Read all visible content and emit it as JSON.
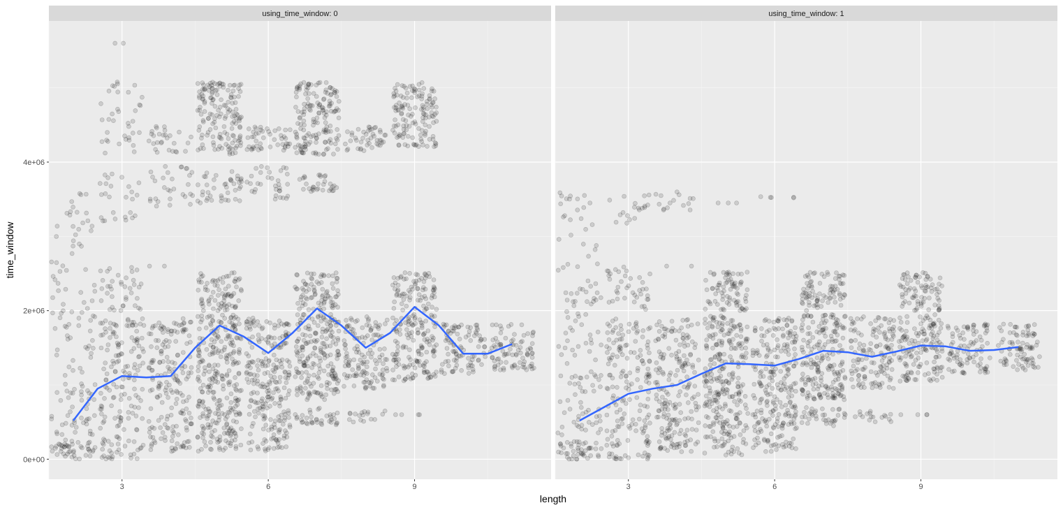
{
  "chart_data": {
    "type": "scatter",
    "xlabel": "length",
    "ylabel": "time_window",
    "xlim": [
      1.5,
      11.8
    ],
    "ylim": [
      -270000,
      5900000
    ],
    "x_ticks": [
      3,
      6,
      9
    ],
    "x_tick_labels": [
      "3",
      "6",
      "9"
    ],
    "y_ticks": [
      0,
      2000000,
      4000000
    ],
    "y_tick_labels": [
      "0e+00",
      "2e+06",
      "4e+06"
    ],
    "grid": true,
    "smooth_color": "#3366FF",
    "point_color": "#000000",
    "panel_background": "#EBEBEB",
    "strip_background": "#D9D9D9",
    "panels": [
      {
        "strip_label": "using_time_window: 0",
        "smooth": {
          "x": [
            2.0,
            2.5,
            3.0,
            3.5,
            4.0,
            4.5,
            5.0,
            5.5,
            6.0,
            6.5,
            7.0,
            7.5,
            8.0,
            8.5,
            9.0,
            9.5,
            10.0,
            10.5,
            11.0
          ],
          "y": [
            520000,
            950000,
            1120000,
            1100000,
            1120000,
            1500000,
            1800000,
            1650000,
            1430000,
            1700000,
            2030000,
            1800000,
            1500000,
            1700000,
            2050000,
            1800000,
            1420000,
            1420000,
            1550000
          ]
        },
        "groups": [
          {
            "x": 2,
            "bands": [
              [
                0,
                250000,
                1.0
              ],
              [
                250000,
                1200000,
                0.3
              ],
              [
                1200000,
                2200000,
                0.2
              ],
              [
                2200000,
                3600000,
                0.15
              ]
            ]
          },
          {
            "x": 3,
            "bands": [
              [
                0,
                300000,
                0.6
              ],
              [
                300000,
                1000000,
                0.4
              ],
              [
                1000000,
                1900000,
                0.55
              ],
              [
                2000000,
                2600000,
                0.35
              ],
              [
                3200000,
                3900000,
                0.2
              ],
              [
                4100000,
                5100000,
                0.2
              ],
              [
                5600000,
                5600000,
                0.1
              ]
            ]
          },
          {
            "x": 4,
            "bands": [
              [
                100000,
                1900000,
                0.6
              ],
              [
                2600000,
                2600000,
                0.1
              ],
              [
                3400000,
                3950000,
                0.3
              ],
              [
                4100000,
                4480000,
                0.4
              ]
            ]
          },
          {
            "x": 5,
            "bands": [
              [
                100000,
                1950000,
                0.9
              ],
              [
                2000000,
                2520000,
                0.85
              ],
              [
                3450000,
                3880000,
                0.55
              ],
              [
                4100000,
                5080000,
                0.9
              ]
            ]
          },
          {
            "x": 6,
            "bands": [
              [
                100000,
                1900000,
                0.8
              ],
              [
                3500000,
                3950000,
                0.4
              ],
              [
                4150000,
                4480000,
                0.8
              ]
            ]
          },
          {
            "x": 7,
            "bands": [
              [
                450000,
                700000,
                0.8
              ],
              [
                800000,
                1950000,
                1.0
              ],
              [
                2000000,
                2520000,
                0.9
              ],
              [
                3600000,
                3880000,
                0.6
              ],
              [
                4100000,
                5080000,
                0.95
              ]
            ]
          },
          {
            "x": 8,
            "bands": [
              [
                500000,
                650000,
                0.6
              ],
              [
                950000,
                1920000,
                0.8
              ],
              [
                4150000,
                4480000,
                0.75
              ]
            ]
          },
          {
            "x": 9,
            "bands": [
              [
                600000,
                600000,
                0.5
              ],
              [
                1050000,
                1950000,
                0.9
              ],
              [
                2000000,
                2520000,
                0.85
              ],
              [
                4200000,
                5080000,
                0.9
              ]
            ]
          },
          {
            "x": 10,
            "bands": [
              [
                1150000,
                1820000,
                0.8
              ]
            ]
          },
          {
            "x": 11,
            "bands": [
              [
                1200000,
                1820000,
                0.8
              ]
            ]
          }
        ]
      },
      {
        "strip_label": "using_time_window: 1",
        "smooth": {
          "x": [
            2.0,
            2.5,
            3.0,
            3.5,
            4.0,
            4.5,
            5.0,
            5.5,
            6.0,
            6.5,
            7.0,
            7.5,
            8.0,
            8.5,
            9.0,
            9.5,
            10.0,
            10.5,
            11.0
          ],
          "y": [
            520000,
            700000,
            880000,
            950000,
            1000000,
            1150000,
            1290000,
            1280000,
            1260000,
            1350000,
            1460000,
            1440000,
            1380000,
            1450000,
            1530000,
            1520000,
            1460000,
            1470000,
            1510000
          ]
        },
        "groups": [
          {
            "x": 2,
            "bands": [
              [
                0,
                250000,
                1.0
              ],
              [
                250000,
                1200000,
                0.3
              ],
              [
                1200000,
                2200000,
                0.2
              ],
              [
                2200000,
                3600000,
                0.15
              ]
            ]
          },
          {
            "x": 3,
            "bands": [
              [
                0,
                300000,
                0.6
              ],
              [
                300000,
                1000000,
                0.45
              ],
              [
                1000000,
                1900000,
                0.55
              ],
              [
                2000000,
                2600000,
                0.35
              ],
              [
                3100000,
                3600000,
                0.2
              ]
            ]
          },
          {
            "x": 4,
            "bands": [
              [
                100000,
                1900000,
                0.65
              ],
              [
                2600000,
                2600000,
                0.1
              ],
              [
                3350000,
                3600000,
                0.3
              ]
            ]
          },
          {
            "x": 5,
            "bands": [
              [
                50000,
                1950000,
                0.85
              ],
              [
                2000000,
                2520000,
                0.85
              ],
              [
                3450000,
                3450000,
                0.3
              ]
            ]
          },
          {
            "x": 6,
            "bands": [
              [
                100000,
                1900000,
                0.8
              ],
              [
                3500000,
                3550000,
                0.4
              ]
            ]
          },
          {
            "x": 7,
            "bands": [
              [
                450000,
                700000,
                0.8
              ],
              [
                800000,
                1950000,
                1.0
              ],
              [
                2000000,
                2520000,
                0.9
              ]
            ]
          },
          {
            "x": 8,
            "bands": [
              [
                500000,
                650000,
                0.6
              ],
              [
                950000,
                1920000,
                0.8
              ]
            ]
          },
          {
            "x": 9,
            "bands": [
              [
                600000,
                600000,
                0.5
              ],
              [
                1050000,
                1950000,
                0.9
              ],
              [
                2000000,
                2520000,
                0.85
              ]
            ]
          },
          {
            "x": 10,
            "bands": [
              [
                1150000,
                1820000,
                0.8
              ]
            ]
          },
          {
            "x": 11,
            "bands": [
              [
                1200000,
                1820000,
                0.8
              ]
            ]
          }
        ]
      }
    ]
  }
}
